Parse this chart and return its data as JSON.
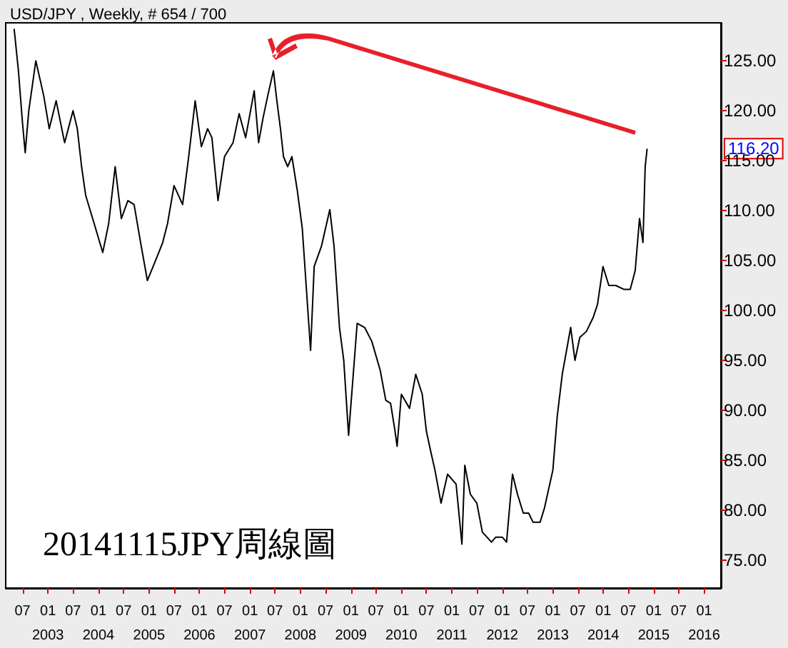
{
  "chart_data": {
    "type": "line",
    "title": "USD/JPY , Weekly, # 654 / 700",
    "annotations": [
      "20141115JPY周線圖",
      "116.20"
    ],
    "x": [
      "2002-05-01",
      "2002-06-01",
      "2002-07-01",
      "2002-07-20",
      "2002-08-15",
      "2002-10-05",
      "2002-12-01",
      "2003-01-10",
      "2003-03-01",
      "2003-05-01",
      "2003-07-01",
      "2003-08-01",
      "2003-09-01",
      "2003-10-01",
      "2003-12-01",
      "2004-02-01",
      "2004-03-15",
      "2004-05-01",
      "2004-06-15",
      "2004-08-01",
      "2004-09-15",
      "2004-11-01",
      "2004-12-20",
      "2005-03-01",
      "2005-04-10",
      "2005-05-15",
      "2005-07-01",
      "2005-09-01",
      "2005-10-15",
      "2005-12-01",
      "2006-01-15",
      "2006-03-01",
      "2006-04-01",
      "2006-05-15",
      "2006-07-01",
      "2006-09-01",
      "2006-10-15",
      "2006-12-01",
      "2007-02-01",
      "2007-03-05",
      "2007-04-05",
      "2007-05-10",
      "2007-06-20",
      "2007-07-15",
      "2007-08-10",
      "2007-09-01",
      "2007-10-01",
      "2007-11-01",
      "2007-12-10",
      "2008-01-15",
      "2008-03-15",
      "2008-04-10",
      "2008-06-01",
      "2008-08-01",
      "2008-09-01",
      "2008-10-10",
      "2008-11-10",
      "2008-12-15",
      "2009-02-15",
      "2009-04-10",
      "2009-06-01",
      "2009-08-01",
      "2009-09-10",
      "2009-10-15",
      "2009-11-15",
      "2009-12-01",
      "2010-01-01",
      "2010-03-01",
      "2010-04-15",
      "2010-06-01",
      "2010-07-01",
      "2010-08-01",
      "2010-09-01",
      "2010-10-15",
      "2010-12-01",
      "2011-02-01",
      "2011-03-15",
      "2011-04-05",
      "2011-05-15",
      "2011-07-01",
      "2011-08-10",
      "2011-10-15",
      "2011-11-15",
      "2012-01-01",
      "2012-02-01",
      "2012-03-15",
      "2012-04-20",
      "2012-06-01",
      "2012-07-10",
      "2012-08-10",
      "2012-10-01",
      "2012-11-01",
      "2013-01-01",
      "2013-02-01",
      "2013-03-10",
      "2013-05-10",
      "2013-06-10",
      "2013-07-15",
      "2013-09-01",
      "2013-10-20",
      "2013-11-20",
      "2013-12-30",
      "2014-02-10",
      "2014-04-01",
      "2014-06-01",
      "2014-07-15",
      "2014-08-20",
      "2014-09-20",
      "2014-10-15",
      "2014-10-31",
      "2014-11-14"
    ],
    "series": [
      {
        "color": "#000000",
        "values": [
          128.2,
          124,
          118.7,
          115.8,
          120,
          125,
          121.5,
          118.2,
          121,
          116.8,
          120,
          118.2,
          114.4,
          111.5,
          108.7,
          105.8,
          108.7,
          114.4,
          109.2,
          111,
          110.6,
          106.8,
          103,
          105.4,
          106.8,
          108.7,
          112.5,
          110.6,
          115.4,
          121,
          116.4,
          118.2,
          117.3,
          111,
          115.4,
          116.8,
          119.7,
          117.3,
          122,
          116.8,
          119.2,
          121.5,
          124,
          121,
          118.2,
          115.4,
          114.4,
          115.4,
          112,
          108.2,
          96,
          104.4,
          106.4,
          110.1,
          106.4,
          98.3,
          95,
          87.5,
          98.7,
          98.3,
          96.9,
          94,
          91,
          90.7,
          88,
          86.4,
          91.6,
          90.2,
          93.6,
          91.6,
          87.9,
          85.9,
          84,
          80.7,
          83.6,
          82.6,
          76.6,
          84.5,
          81.6,
          80.7,
          77.8,
          76.8,
          77.3,
          77.3,
          76.8,
          83.6,
          81.6,
          79.7,
          79.7,
          78.8,
          78.8,
          80.2,
          84,
          89.3,
          93.6,
          98.3,
          95,
          97.3,
          97.9,
          99.3,
          100.6,
          104.4,
          102.5,
          102.5,
          102.1,
          102.1,
          104,
          109.2,
          106.8,
          114.4,
          116.2
        ]
      }
    ],
    "xlim": [
      "2002-03-01",
      "2016-05-01"
    ],
    "xticks": [
      {
        "value": "2002-07-01",
        "label": "07"
      },
      {
        "value": "2003-01-01",
        "label": "01\n2003"
      },
      {
        "value": "2003-07-01",
        "label": "07"
      },
      {
        "value": "2004-01-01",
        "label": "01\n2004"
      },
      {
        "value": "2004-07-01",
        "label": "07"
      },
      {
        "value": "2005-01-01",
        "label": "01\n2005"
      },
      {
        "value": "2005-07-01",
        "label": "07"
      },
      {
        "value": "2006-01-01",
        "label": "01\n2006"
      },
      {
        "value": "2006-07-01",
        "label": "07"
      },
      {
        "value": "2007-01-01",
        "label": "01\n2007"
      },
      {
        "value": "2007-07-01",
        "label": "07"
      },
      {
        "value": "2008-01-01",
        "label": "01\n2008"
      },
      {
        "value": "2008-07-01",
        "label": "07"
      },
      {
        "value": "2009-01-01",
        "label": "01\n2009"
      },
      {
        "value": "2009-07-01",
        "label": "07"
      },
      {
        "value": "2010-01-01",
        "label": "01\n2010"
      },
      {
        "value": "2010-07-01",
        "label": "07"
      },
      {
        "value": "2011-01-01",
        "label": "01\n2011"
      },
      {
        "value": "2011-07-01",
        "label": "07"
      },
      {
        "value": "2012-01-01",
        "label": "01\n2012"
      },
      {
        "value": "2012-07-01",
        "label": "07"
      },
      {
        "value": "2013-01-01",
        "label": "01\n2013"
      },
      {
        "value": "2013-07-01",
        "label": "07"
      },
      {
        "value": "2014-01-01",
        "label": "01\n2014"
      },
      {
        "value": "2014-07-01",
        "label": "07"
      },
      {
        "value": "2015-01-01",
        "label": "01\n2015"
      },
      {
        "value": "2015-07-01",
        "label": "07"
      },
      {
        "value": "2016-01-01",
        "label": "01\n2016"
      }
    ],
    "ylim": [
      72.2,
      128.8
    ],
    "yticks": [
      {
        "value": 75,
        "label": "75.00"
      },
      {
        "value": 80,
        "label": "80.00"
      },
      {
        "value": 85,
        "label": "85.00"
      },
      {
        "value": 90,
        "label": "90.00"
      },
      {
        "value": 95,
        "label": "95.00"
      },
      {
        "value": 100,
        "label": "100.00"
      },
      {
        "value": 105,
        "label": "105.00"
      },
      {
        "value": 110,
        "label": "110.00"
      },
      {
        "value": 115,
        "label": "115.00"
      },
      {
        "value": 120,
        "label": "120.00"
      },
      {
        "value": 125,
        "label": "125.00"
      }
    ],
    "grid": false,
    "marker": "none",
    "line_style": "solid"
  }
}
